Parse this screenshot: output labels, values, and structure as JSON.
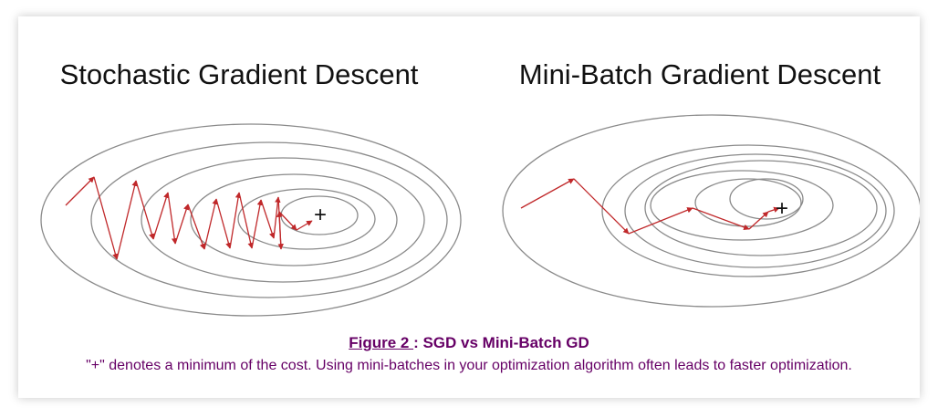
{
  "panels": {
    "sgd": {
      "title": "Stochastic Gradient Descent",
      "minimum_marker": "+"
    },
    "minibatch": {
      "title": "Mini-Batch Gradient Descent",
      "minimum_marker": "+"
    }
  },
  "caption": {
    "figure_label": "Figure 2 ",
    "separator": ": ",
    "figure_title": "SGD vs Mini-Batch GD",
    "description": "\"+\" denotes a minimum of the cost. Using mini-batches in your optimization algorithm often leads to faster optimization."
  },
  "colors": {
    "contour": "#8a8a8a",
    "path": "#c0282a",
    "caption": "#660066"
  }
}
